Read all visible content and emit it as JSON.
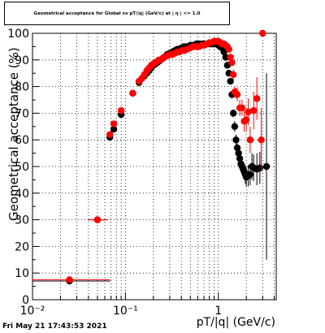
{
  "chart_data": {
    "type": "scatter",
    "title": "Geometrical acceptance for Global vs pT/|q| (GeV/c) at | η | <= 1.0",
    "xlabel": "pT/|q| (GeV/c)",
    "ylabel": "Geometrical acceptance (%)",
    "xscale": "log",
    "xlim": [
      0.01,
      4.2
    ],
    "ylim": [
      0,
      100
    ],
    "grid": true,
    "x_tick_labels": [
      "10⁻²",
      "10⁻¹",
      "1"
    ],
    "y_tick_labels": [
      "0",
      "10",
      "20",
      "30",
      "40",
      "50",
      "60",
      "70",
      "80",
      "90",
      "100"
    ],
    "series": [
      {
        "color": "#000000",
        "x": [
          0.025,
          0.05,
          0.068,
          0.075,
          0.09,
          0.12,
          0.14,
          0.15,
          0.16,
          0.17,
          0.18,
          0.19,
          0.2,
          0.21,
          0.22,
          0.23,
          0.24,
          0.25,
          0.26,
          0.28,
          0.3,
          0.32,
          0.34,
          0.36,
          0.38,
          0.4,
          0.43,
          0.46,
          0.5,
          0.54,
          0.58,
          0.62,
          0.66,
          0.7,
          0.75,
          0.8,
          0.85,
          0.9,
          0.95,
          1.0,
          1.05,
          1.1,
          1.15,
          1.2,
          1.25,
          1.3,
          1.35,
          1.4,
          1.45,
          1.5,
          1.55,
          1.6,
          1.65,
          1.7,
          1.75,
          1.8,
          1.85,
          1.9,
          1.95,
          2.0,
          2.1,
          2.2,
          2.3,
          2.4,
          2.6,
          2.8,
          3.3
        ],
        "y": [
          7,
          30,
          61,
          64,
          69.5,
          77.5,
          81.5,
          83,
          84,
          85,
          86,
          87,
          88,
          88.5,
          89,
          89.5,
          90,
          90.5,
          91,
          92,
          92.5,
          93,
          93.5,
          94,
          94,
          94.5,
          95,
          95,
          95.5,
          95.5,
          96,
          96,
          96,
          96,
          96,
          96,
          96,
          96,
          96,
          95.5,
          95,
          94.5,
          93,
          91,
          88,
          85,
          82,
          77,
          70,
          65,
          60,
          57,
          55,
          53,
          51,
          50,
          49,
          48,
          47,
          46,
          46.5,
          47,
          50,
          49.5,
          49,
          49.5,
          50
        ],
        "yerr": [
          0.5,
          0.5,
          1,
          1,
          1,
          1,
          0.5,
          0.5,
          0.5,
          0.5,
          0.5,
          0.5,
          0.5,
          0.5,
          0.5,
          0.5,
          0.5,
          0.5,
          0.5,
          0.5,
          0.5,
          0.5,
          0.5,
          0.5,
          0.5,
          0.5,
          0.5,
          0.5,
          0.5,
          0.5,
          0.5,
          0.5,
          0.5,
          0.5,
          0.5,
          0.5,
          0.5,
          0.5,
          0.5,
          0.5,
          0.5,
          0.5,
          0.5,
          0.5,
          1,
          1,
          1,
          1.5,
          1.5,
          2,
          2,
          2,
          2.5,
          2.5,
          3,
          3,
          3,
          3,
          3.5,
          3.5,
          4,
          4,
          5,
          5,
          6,
          6,
          35
        ]
      },
      {
        "color": "#ff0000",
        "x": [
          0.025,
          0.05,
          0.068,
          0.075,
          0.09,
          0.12,
          0.14,
          0.15,
          0.16,
          0.17,
          0.18,
          0.19,
          0.2,
          0.21,
          0.22,
          0.23,
          0.24,
          0.25,
          0.26,
          0.28,
          0.3,
          0.32,
          0.34,
          0.36,
          0.38,
          0.4,
          0.43,
          0.46,
          0.5,
          0.54,
          0.58,
          0.62,
          0.66,
          0.7,
          0.75,
          0.8,
          0.85,
          0.9,
          0.95,
          1.0,
          1.05,
          1.1,
          1.15,
          1.2,
          1.25,
          1.3,
          1.35,
          1.4,
          1.45,
          1.5,
          1.55,
          1.6,
          1.7,
          1.8,
          1.9,
          2.0,
          2.1,
          2.2,
          2.4,
          2.6,
          2.9,
          3.0
        ],
        "y": [
          7.5,
          30,
          62,
          66,
          71,
          77.5,
          82,
          83,
          84.5,
          86,
          87,
          88,
          88.5,
          89,
          89.5,
          90,
          90,
          90.5,
          91,
          91.5,
          92,
          92,
          92.5,
          93,
          93,
          93.5,
          93.5,
          94,
          94.5,
          95,
          95,
          95,
          95.5,
          95.5,
          96,
          96.5,
          96.5,
          97,
          97,
          97,
          96.5,
          96,
          96,
          95.5,
          95,
          94,
          91,
          89,
          84.5,
          78,
          77.5,
          77,
          72,
          72,
          67,
          67.5,
          70.5,
          60,
          71,
          75.5,
          60,
          100
        ],
        "yerr": [
          0.5,
          0.5,
          1,
          1,
          1,
          1,
          0.5,
          0.5,
          0.5,
          0.5,
          0.5,
          0.5,
          0.5,
          0.5,
          0.5,
          0.5,
          0.5,
          0.5,
          0.5,
          0.5,
          0.5,
          0.5,
          0.5,
          0.5,
          0.5,
          0.5,
          0.5,
          0.5,
          0.5,
          0.5,
          0.5,
          0.5,
          0.5,
          0.5,
          0.5,
          0.5,
          0.5,
          0.5,
          0.5,
          0.5,
          0.5,
          0.5,
          0.5,
          0.5,
          1,
          1,
          1.5,
          1.5,
          2,
          2,
          2,
          2.5,
          3,
          3,
          4,
          4,
          5,
          5,
          7,
          8,
          12,
          1
        ]
      }
    ]
  },
  "footer_text": "Fri May 21 17:43:53 2021"
}
